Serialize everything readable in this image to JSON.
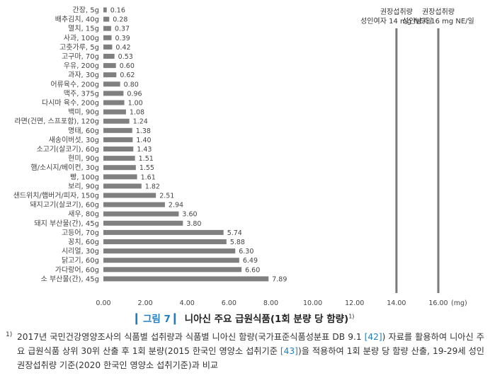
{
  "chart_data": {
    "type": "bar",
    "orientation": "horizontal",
    "categories": [
      "간장, 5g",
      "배추김치, 40g",
      "멸치, 15g",
      "사과, 100g",
      "고춧가루, 5g",
      "고구마, 70g",
      "우유, 200g",
      "과자, 30g",
      "어류육수, 200g",
      "맥주, 375g",
      "다시마 육수, 200g",
      "백미, 90g",
      "라면(건면, 스프포함), 120g",
      "명태, 60g",
      "새송이버섯, 30g",
      "소고기(살코기), 60g",
      "현미, 90g",
      "햄/소시지/베이컨, 30g",
      "빵, 100g",
      "보리, 90g",
      "샌드위치/햄버거/피자, 150g",
      "돼지고기(살코기), 60g",
      "새우, 80g",
      "돼지 부산물(간), 45g",
      "고등어, 70g",
      "꽁치, 60g",
      "시리얼, 30g",
      "닭고기, 60g",
      "가다랑어, 60g",
      "소 부산물(간), 45g"
    ],
    "values": [
      0.16,
      0.28,
      0.37,
      0.39,
      0.42,
      0.53,
      0.6,
      0.62,
      0.8,
      0.96,
      1.0,
      1.08,
      1.24,
      1.38,
      1.4,
      1.43,
      1.51,
      1.55,
      1.61,
      1.82,
      2.51,
      2.94,
      3.6,
      3.8,
      5.74,
      5.88,
      6.3,
      6.49,
      6.6,
      7.89
    ],
    "value_labels": [
      "0.16",
      "0.28",
      "0.37",
      "0.39",
      "0.42",
      "0.53",
      "0.60",
      "0.62",
      "0.80",
      "0.96",
      "1.00",
      "1.08",
      "1.24",
      "1.38",
      "1.40",
      "1.43",
      "1.51",
      "1.55",
      "1.61",
      "1.82",
      "2.51",
      "2.94",
      "3.60",
      "3.80",
      "5.74",
      "5.88",
      "6.30",
      "6.49",
      "6.60",
      "7.89"
    ],
    "xlim": [
      0,
      16
    ],
    "x_ticks": [
      "0.00",
      "2.00",
      "4.00",
      "6.00",
      "8.00",
      "10.00",
      "12.00",
      "14.00",
      "16.00"
    ],
    "x_unit": "(mg)",
    "reference_lines": [
      {
        "value": 14,
        "label_line1": "권장섭취량",
        "label_line2": "성인여자 14 mg NE/일"
      },
      {
        "value": 16,
        "label_line1": "권장섭취량",
        "label_line2": "성인남자 16 mg NE/일"
      }
    ],
    "grid": false,
    "bar_color": "#808080",
    "refline_color": "#7a7a7a"
  },
  "caption": {
    "figure_label": "그림 7",
    "title": "니아신 주요 급원식품(1회 분량 당 함량)",
    "superscript": "1)"
  },
  "footnote": {
    "mark": "1)",
    "text_part1": "2017년 국민건강영양조사의 식품별 섭취량과 식품별 니아신 함량(국가표준식품성분표 DB 9.1 ",
    "ref1": "[42]",
    "text_part2": ") 자료를 활용하여 니아신 주요 급원식품 상위 30위 산출 후 1회 분량(2015 한국인 영양소 섭취기준 ",
    "ref2": "[43]",
    "text_part3": ")을 적용하여 1회 분량 당 함량 산출, 19-29세 성인 권장섭취량 기준(2020 한국인 영양소 섭취기준)과 비교"
  }
}
